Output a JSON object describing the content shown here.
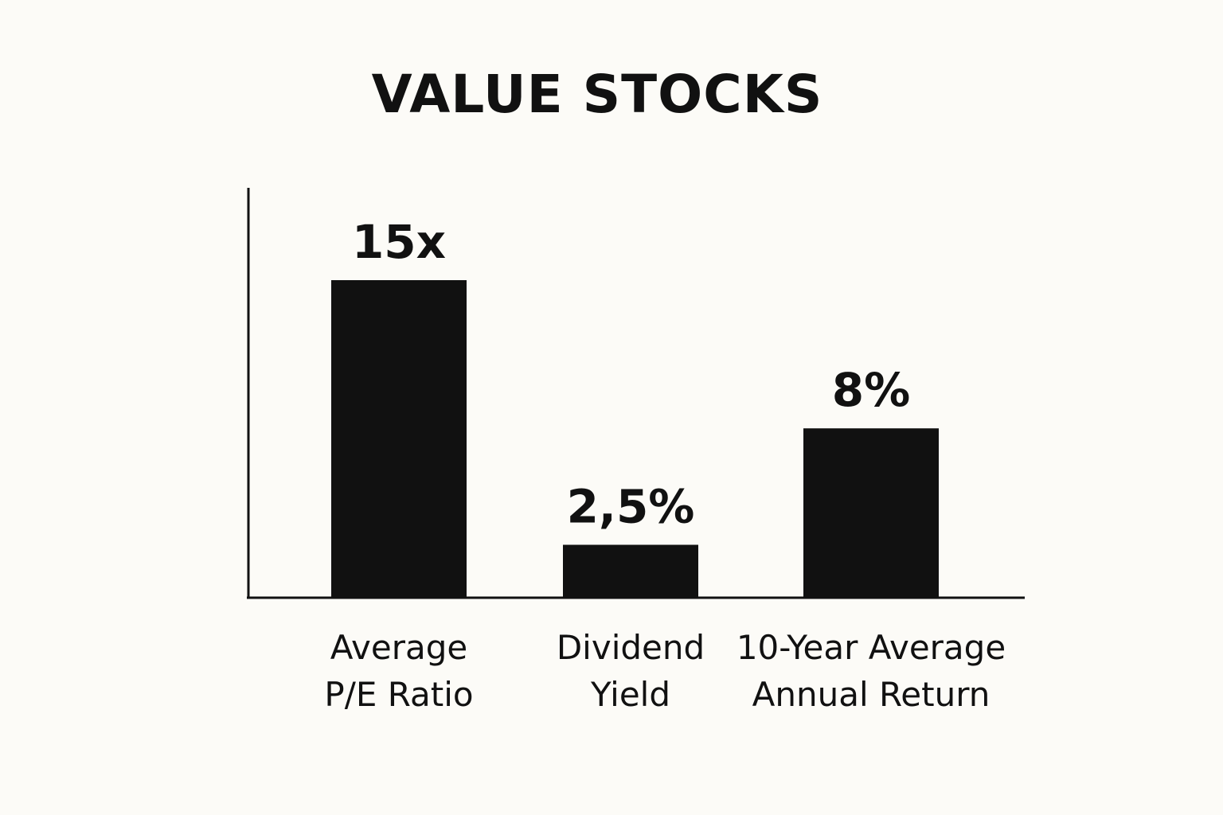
{
  "chart_data": {
    "type": "bar",
    "title": "VALUE STOCKS",
    "categories": [
      [
        "Average",
        "P/E Ratio"
      ],
      [
        "Dividend",
        "Yield"
      ],
      [
        "10-Year Average",
        "Annual Return"
      ]
    ],
    "values": [
      15,
      2.5,
      8
    ],
    "value_labels": [
      "15x",
      "2,5%",
      "8%"
    ],
    "xlabel": "",
    "ylabel": "",
    "grid": false,
    "colors": {
      "bar": "#111111",
      "axis": "#111111",
      "background": "#fcfbf7"
    }
  }
}
